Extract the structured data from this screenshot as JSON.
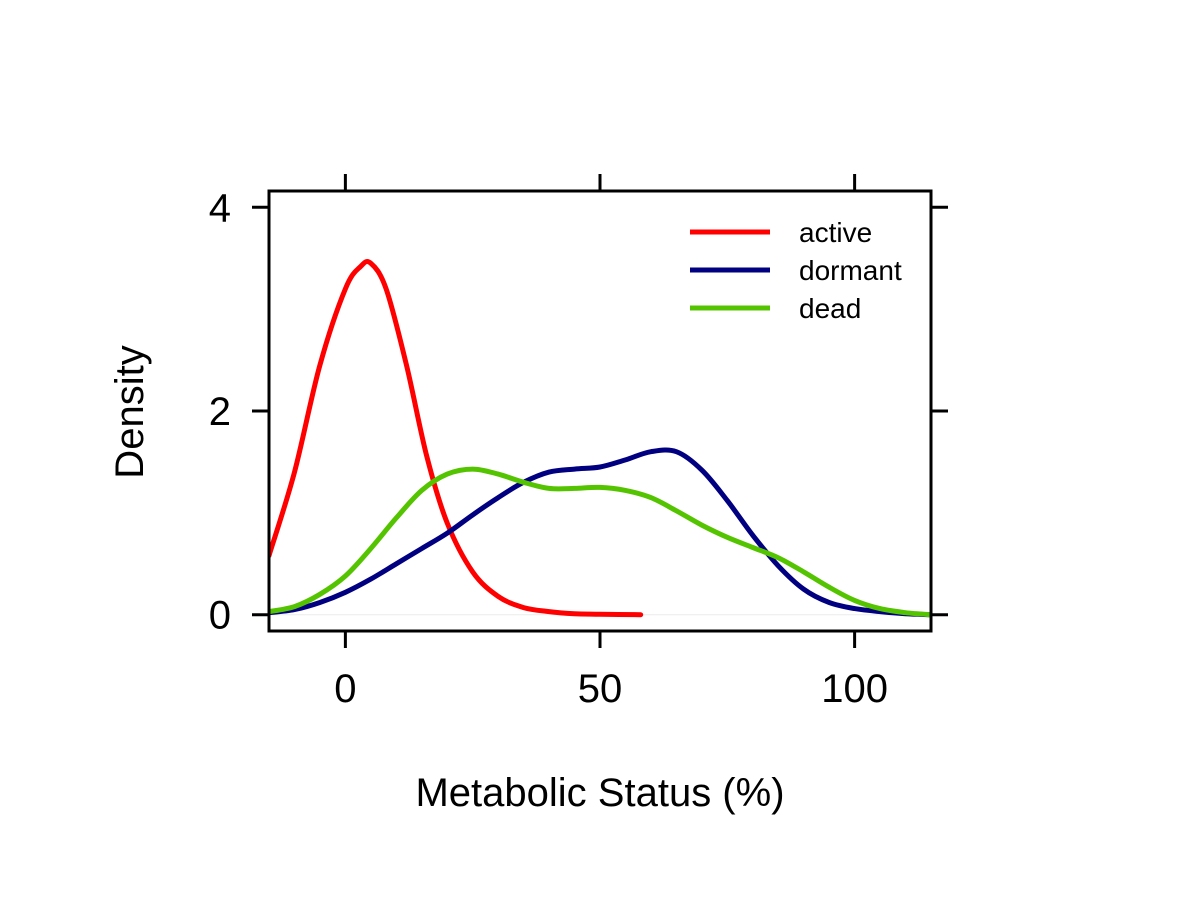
{
  "chart_data": {
    "type": "line",
    "xlabel": "Metabolic Status (%)",
    "ylabel": "Density",
    "xlim": [
      -15,
      115
    ],
    "ylim": [
      -0.16,
      4.16
    ],
    "x_ticks": [
      0,
      50,
      100
    ],
    "x_tick_labels": [
      "0",
      "50",
      "100"
    ],
    "y_ticks": [
      0,
      2,
      4
    ],
    "y_tick_labels": [
      "0",
      "2",
      "4"
    ],
    "grid": false,
    "legend_position": "top-right",
    "series": [
      {
        "name": "active",
        "color": "#ff0000",
        "x": [
          -15,
          -10,
          -5,
          0,
          3,
          5,
          8,
          12,
          16,
          20,
          25,
          30,
          35,
          40,
          45,
          50,
          58
        ],
        "y": [
          0.58,
          1.4,
          2.45,
          3.2,
          3.42,
          3.45,
          3.2,
          2.45,
          1.55,
          0.9,
          0.42,
          0.18,
          0.07,
          0.03,
          0.01,
          0.005,
          0.0
        ]
      },
      {
        "name": "dormant",
        "color": "#000080",
        "x": [
          -15,
          -10,
          -5,
          0,
          5,
          10,
          15,
          20,
          25,
          30,
          35,
          40,
          45,
          50,
          55,
          60,
          65,
          70,
          75,
          80,
          85,
          90,
          95,
          100,
          105,
          110,
          115
        ],
        "y": [
          0.02,
          0.05,
          0.12,
          0.22,
          0.35,
          0.5,
          0.65,
          0.8,
          0.98,
          1.15,
          1.3,
          1.4,
          1.43,
          1.45,
          1.52,
          1.6,
          1.6,
          1.42,
          1.12,
          0.78,
          0.48,
          0.25,
          0.12,
          0.06,
          0.03,
          0.01,
          0.0
        ]
      },
      {
        "name": "dead",
        "color": "#55c400",
        "x": [
          -15,
          -10,
          -5,
          0,
          5,
          10,
          15,
          20,
          25,
          30,
          35,
          40,
          45,
          50,
          55,
          60,
          65,
          70,
          75,
          80,
          85,
          90,
          95,
          100,
          105,
          110,
          115
        ],
        "y": [
          0.03,
          0.08,
          0.2,
          0.38,
          0.65,
          0.95,
          1.22,
          1.38,
          1.43,
          1.38,
          1.3,
          1.24,
          1.24,
          1.25,
          1.22,
          1.15,
          1.02,
          0.88,
          0.76,
          0.66,
          0.56,
          0.42,
          0.27,
          0.14,
          0.06,
          0.02,
          0.0
        ]
      }
    ]
  }
}
